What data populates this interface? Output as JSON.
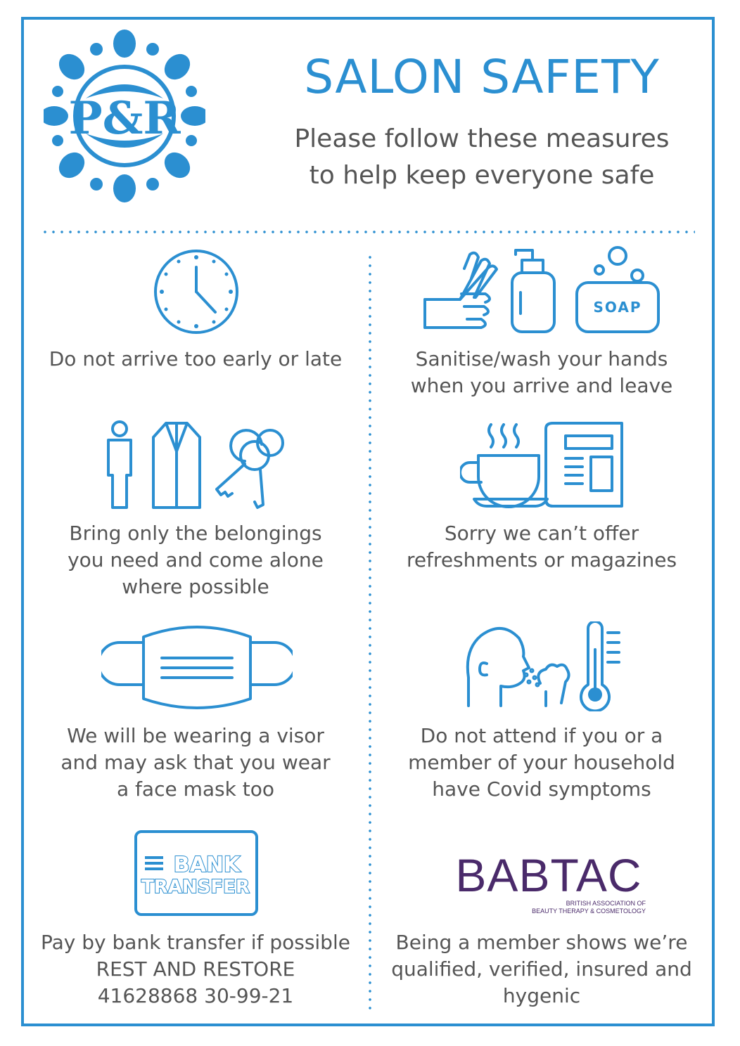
{
  "header": {
    "title": "SALON SAFETY",
    "subtitle_lines": [
      "Please follow these measures",
      "to help keep everyone safe"
    ]
  },
  "logo": {
    "text": "P&R",
    "icon": "floral-monogram-logo"
  },
  "colors": {
    "accent": "#2b8fd1",
    "text": "#555555",
    "babtac": "#4a2a6a"
  },
  "items": [
    {
      "icon": "clock-icon",
      "lines": [
        "Do not arrive too early or late"
      ]
    },
    {
      "icon": "hand-wash-icon",
      "lines": [
        "Sanitise/wash your hands",
        "when you arrive and leave"
      ]
    },
    {
      "icon": "belongings-icon",
      "lines": [
        "Bring only the belongings",
        "you need and come alone",
        "where possible"
      ]
    },
    {
      "icon": "coffee-magazine-icon",
      "lines": [
        "Sorry we can’t offer",
        "refreshments or magazines"
      ]
    },
    {
      "icon": "face-mask-icon",
      "lines": [
        "We will be wearing a visor",
        "and may ask that you wear",
        "a face mask too"
      ]
    },
    {
      "icon": "covid-symptoms-icon",
      "lines": [
        "Do not attend if you or a",
        "member of your household",
        "have Covid symptoms"
      ]
    },
    {
      "icon": "bank-transfer-icon",
      "lines": [
        "Pay by bank transfer if possible",
        "REST AND RESTORE",
        "41628868 30-99-21"
      ]
    },
    {
      "icon": "babtac-logo",
      "lines": [
        "Being a member shows we’re",
        "qualified, verified, insured and",
        "hygenic"
      ]
    }
  ],
  "soap_label": "SOAP",
  "bank_label": [
    "BANK",
    "TRANSFER"
  ],
  "babtac": {
    "name": "BABTAC",
    "line1": "BRITISH ASSOCIATION OF",
    "line2": "BEAUTY THERAPY & COSMETOLOGY"
  }
}
